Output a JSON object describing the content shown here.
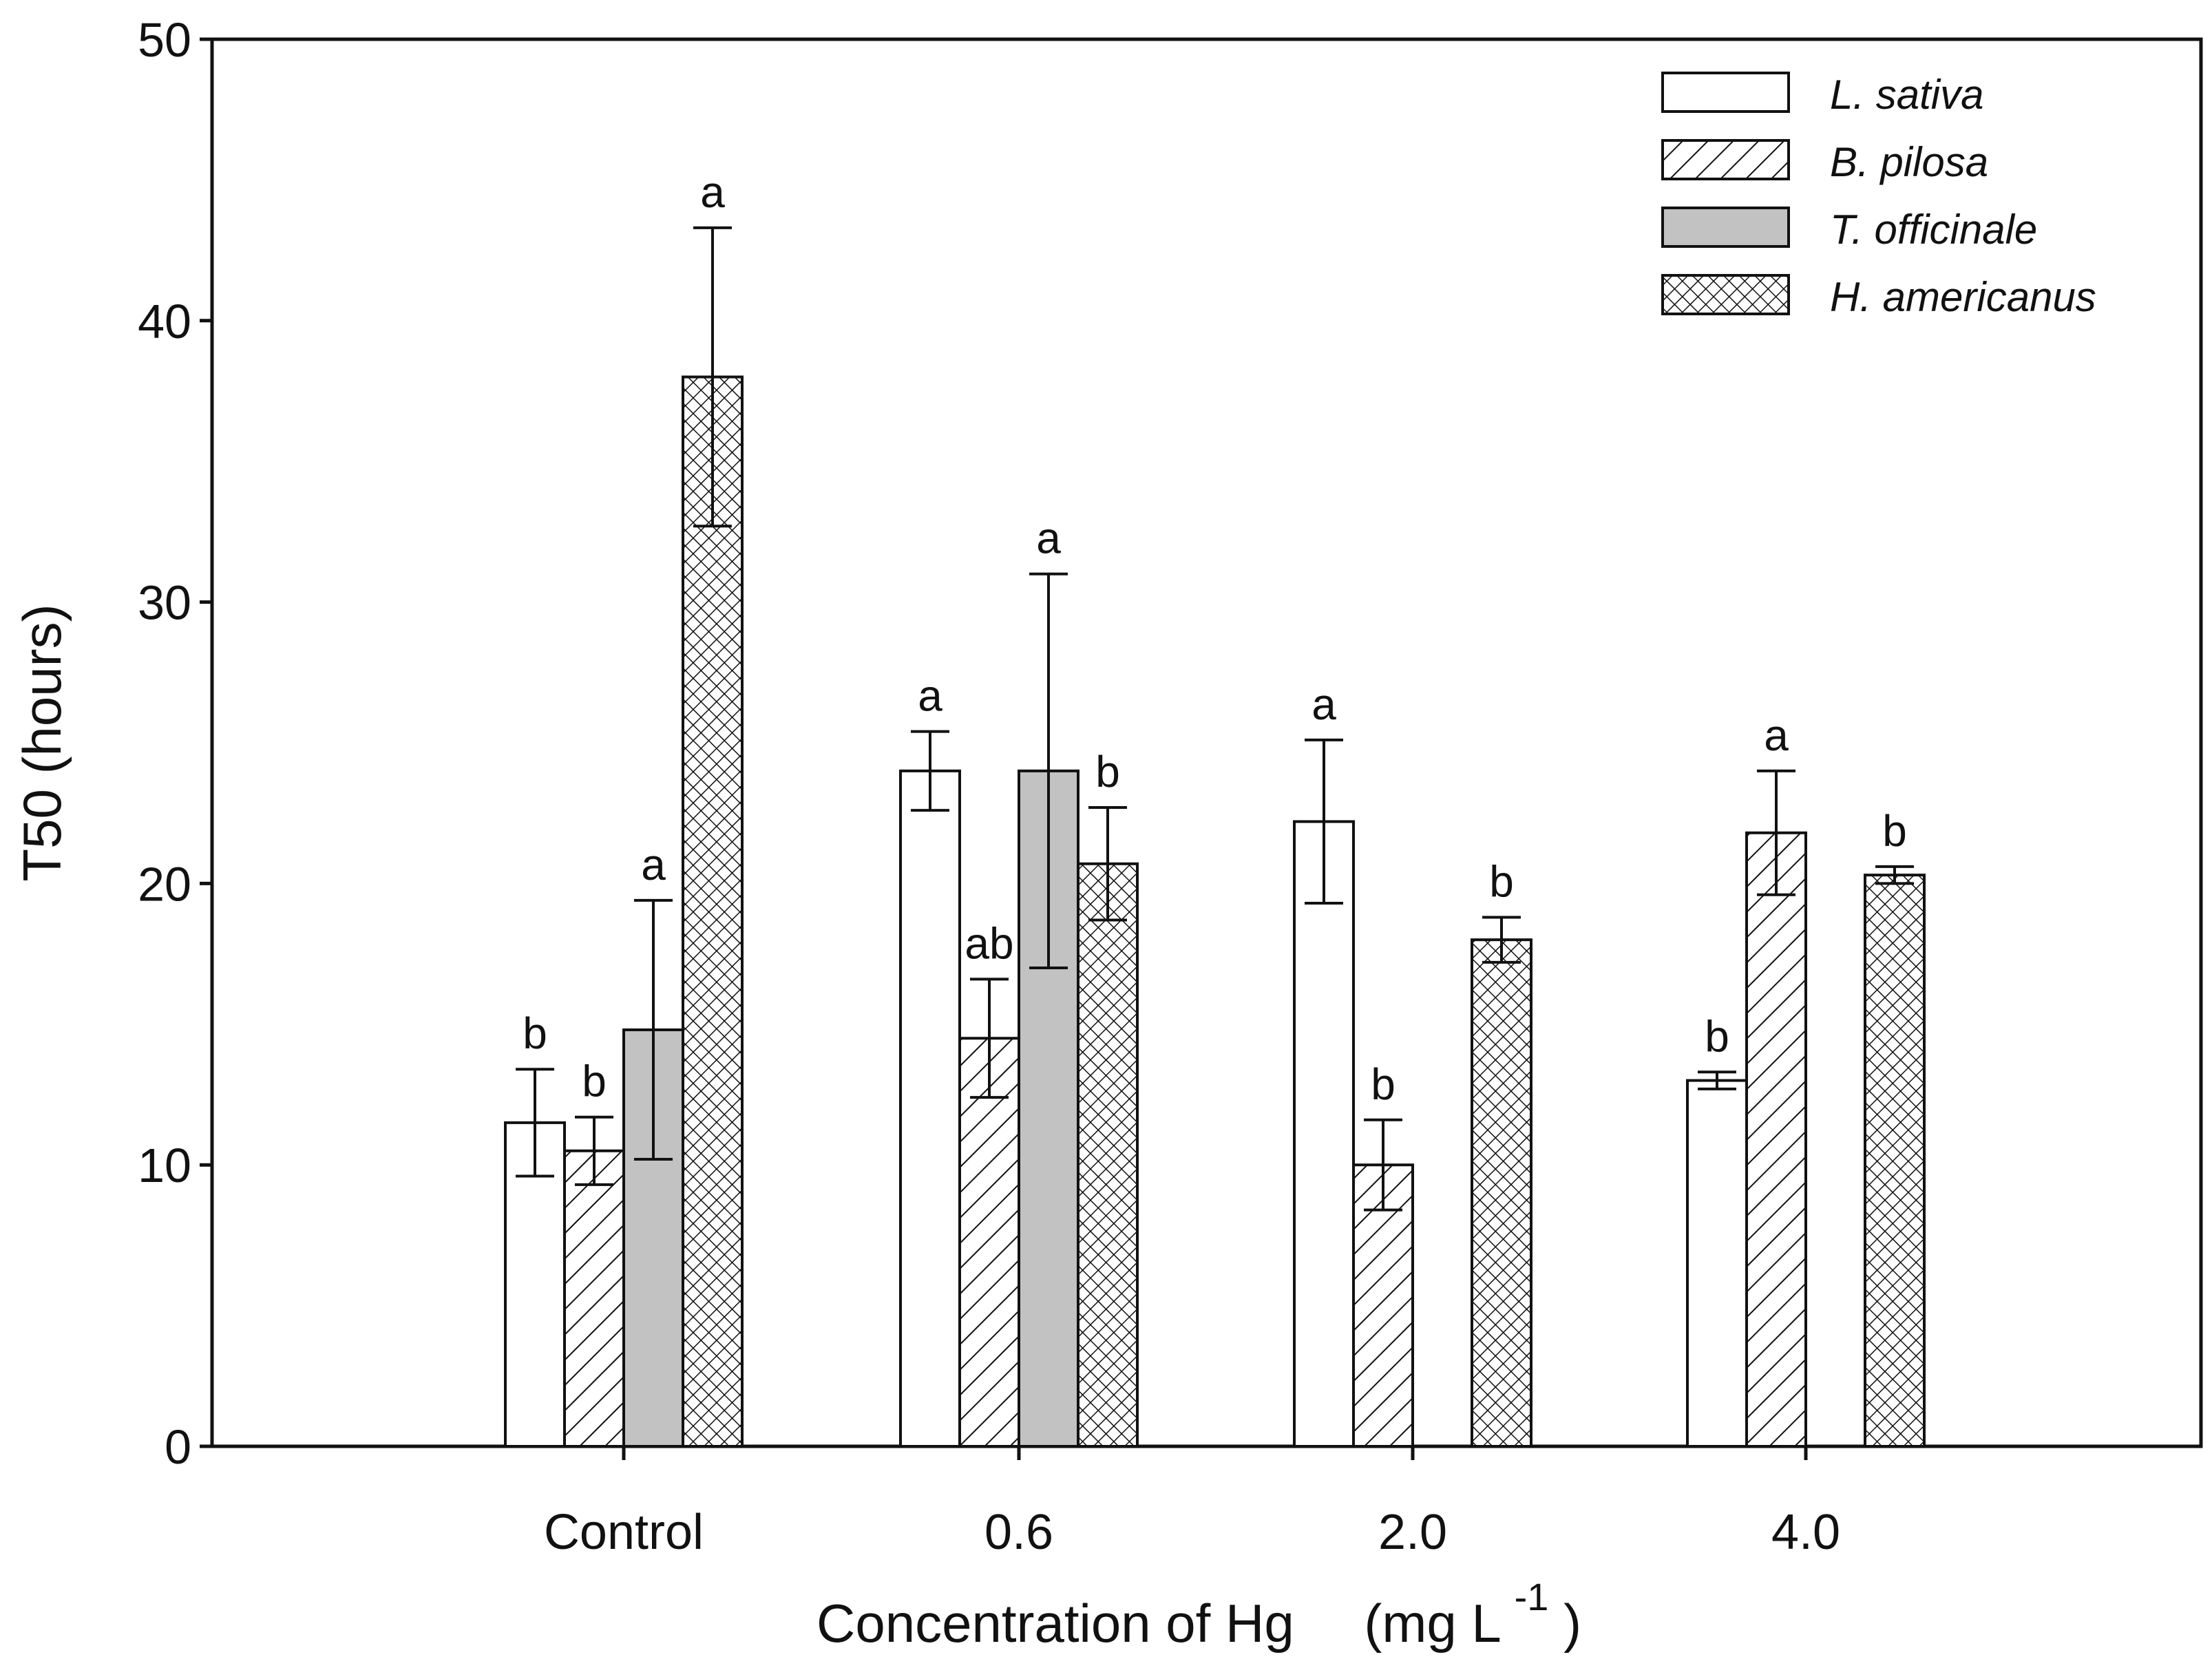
{
  "chart_data": {
    "type": "bar",
    "ylabel": "T50 (hours)",
    "xlabel": {
      "main": "Concentration of Hg",
      "unit_prefix": "(mg L",
      "unit_exponent": "-1",
      "unit_suffix": ")"
    },
    "ylim": [
      0,
      50
    ],
    "yticks": [
      "0",
      "10",
      "20",
      "30",
      "40",
      "50"
    ],
    "categories": [
      "Control",
      "0.6",
      "2.0",
      "4.0"
    ],
    "legend_position": "top-right",
    "series": [
      {
        "name": "L. sativa",
        "pattern": "open",
        "values": [
          11.5,
          24.0,
          22.2,
          13.0
        ],
        "errors": [
          1.9,
          1.4,
          2.9,
          0.3
        ],
        "labels": [
          "b",
          "a",
          "a",
          "b"
        ]
      },
      {
        "name": "B. pilosa",
        "pattern": "diagonal-hatch",
        "values": [
          10.5,
          14.5,
          10.0,
          21.8
        ],
        "errors": [
          1.2,
          2.1,
          1.6,
          2.2
        ],
        "labels": [
          "b",
          "ab",
          "b",
          "a"
        ]
      },
      {
        "name": "T. officinale",
        "pattern": "gray",
        "values": [
          14.8,
          24.0,
          null,
          null
        ],
        "errors": [
          4.6,
          7.0,
          null,
          null
        ],
        "labels": [
          "a",
          "a",
          "",
          ""
        ]
      },
      {
        "name": "H. americanus",
        "pattern": "crosshatch",
        "values": [
          38.0,
          20.7,
          18.0,
          20.3
        ],
        "errors": [
          5.3,
          2.0,
          0.8,
          0.3
        ],
        "labels": [
          "a",
          "b",
          "b",
          "b"
        ]
      }
    ]
  }
}
